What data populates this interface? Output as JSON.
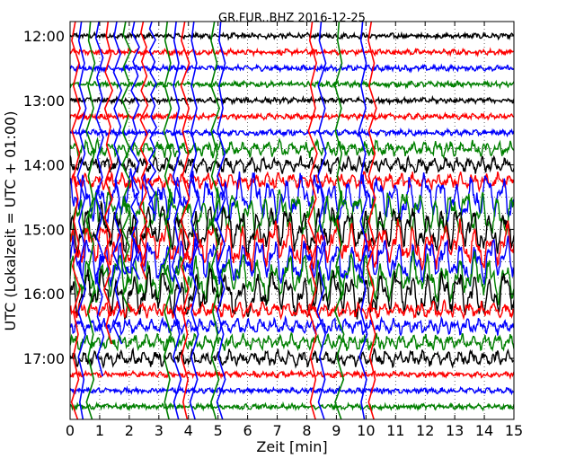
{
  "chart_data": {
    "type": "line",
    "title": "GR.FUR..BHZ 2016-12-25",
    "xlabel": "Zeit  [min]",
    "ylabel": "UTC (Lokalzeit = UTC + 01:00)",
    "xlim": [
      0,
      15
    ],
    "x_ticks": [
      "0",
      "1",
      "2",
      "3",
      "4",
      "5",
      "6",
      "7",
      "8",
      "9",
      "10",
      "11",
      "12",
      "13",
      "14",
      "15"
    ],
    "y_ticks": [
      {
        "label": "12:00",
        "row": 0
      },
      {
        "label": "13:00",
        "row": 4
      },
      {
        "label": "14:00",
        "row": 8
      },
      {
        "label": "15:00",
        "row": 12
      },
      {
        "label": "16:00",
        "row": 16
      },
      {
        "label": "17:00",
        "row": 20
      }
    ],
    "rows_per_hour": 4,
    "minutes_per_row": 15,
    "color_cycle": [
      "#000000",
      "#ff0000",
      "#0000ff",
      "#008000"
    ],
    "grid": "dotted",
    "series": [
      {
        "start": "12:00",
        "amplitude": "low"
      },
      {
        "start": "12:15",
        "amplitude": "low"
      },
      {
        "start": "12:30",
        "amplitude": "low"
      },
      {
        "start": "12:45",
        "amplitude": "low"
      },
      {
        "start": "13:00",
        "amplitude": "low"
      },
      {
        "start": "13:15",
        "amplitude": "low"
      },
      {
        "start": "13:30",
        "amplitude": "low"
      },
      {
        "start": "13:45",
        "amplitude": "medium"
      },
      {
        "start": "14:00",
        "amplitude": "medium"
      },
      {
        "start": "14:15",
        "amplitude": "medium"
      },
      {
        "start": "14:30",
        "amplitude": "high"
      },
      {
        "start": "14:45",
        "amplitude": "high"
      },
      {
        "start": "15:00",
        "amplitude": "high"
      },
      {
        "start": "15:15",
        "amplitude": "high"
      },
      {
        "start": "15:30",
        "amplitude": "high"
      },
      {
        "start": "15:45",
        "amplitude": "high"
      },
      {
        "start": "16:00",
        "amplitude": "high"
      },
      {
        "start": "16:15",
        "amplitude": "medium"
      },
      {
        "start": "16:30",
        "amplitude": "medium"
      },
      {
        "start": "16:45",
        "amplitude": "medium"
      },
      {
        "start": "17:00",
        "amplitude": "medium"
      },
      {
        "start": "17:15",
        "amplitude": "low"
      },
      {
        "start": "17:30",
        "amplitude": "low"
      },
      {
        "start": "17:45",
        "amplitude": "low"
      }
    ],
    "spikes": [
      {
        "minute": 0.2,
        "from_row": 0,
        "to_row": 23
      },
      {
        "minute": 0.4,
        "from_row": 0,
        "to_row": 23
      },
      {
        "minute": 0.7,
        "from_row": 0,
        "to_row": 23
      },
      {
        "minute": 1.0,
        "from_row": 0,
        "to_row": 20
      },
      {
        "minute": 1.3,
        "from_row": 0,
        "to_row": 18
      },
      {
        "minute": 1.6,
        "from_row": 0,
        "to_row": 18
      },
      {
        "minute": 1.9,
        "from_row": 0,
        "to_row": 16
      },
      {
        "minute": 2.2,
        "from_row": 0,
        "to_row": 14
      },
      {
        "minute": 2.5,
        "from_row": 0,
        "to_row": 14
      },
      {
        "minute": 2.8,
        "from_row": 0,
        "to_row": 10
      },
      {
        "minute": 3.3,
        "from_row": 0,
        "to_row": 23
      },
      {
        "minute": 3.6,
        "from_row": 0,
        "to_row": 23
      },
      {
        "minute": 3.9,
        "from_row": 0,
        "to_row": 23
      },
      {
        "minute": 4.2,
        "from_row": 0,
        "to_row": 23
      },
      {
        "minute": 4.9,
        "from_row": 0,
        "to_row": 23
      },
      {
        "minute": 5.1,
        "from_row": 0,
        "to_row": 23
      },
      {
        "minute": 8.2,
        "from_row": 0,
        "to_row": 23
      },
      {
        "minute": 8.5,
        "from_row": 0,
        "to_row": 23
      },
      {
        "minute": 9.1,
        "from_row": 0,
        "to_row": 23
      },
      {
        "minute": 9.9,
        "from_row": 0,
        "to_row": 23
      },
      {
        "minute": 10.2,
        "from_row": 0,
        "to_row": 23
      }
    ]
  }
}
